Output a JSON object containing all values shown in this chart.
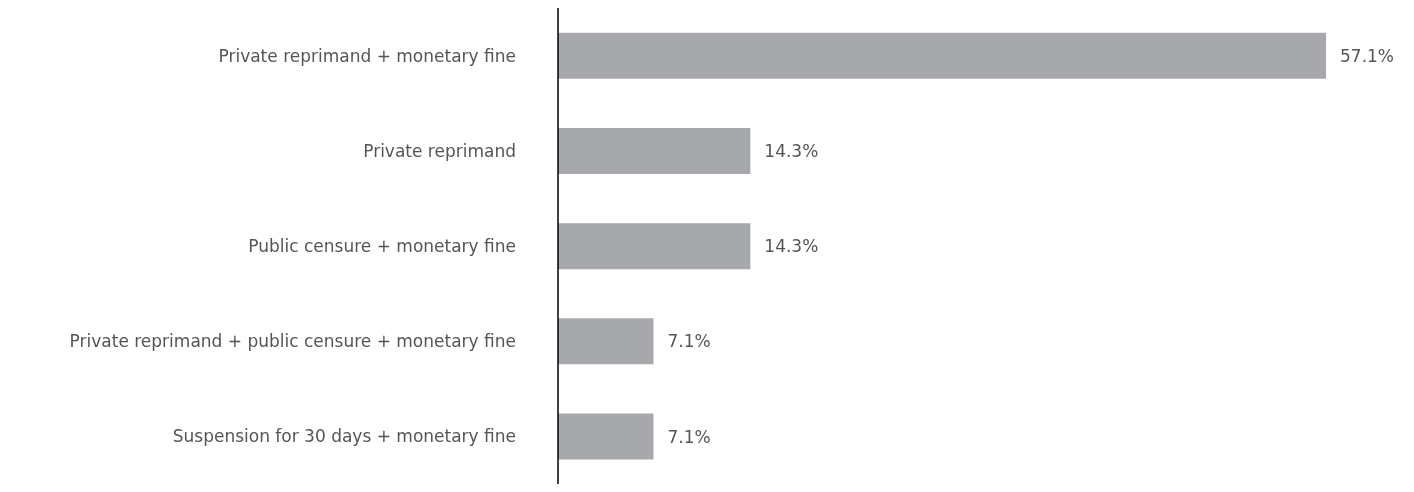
{
  "chart_data": {
    "type": "bar",
    "orientation": "horizontal",
    "categories": [
      "Private reprimand + monetary fine",
      "Private reprimand",
      "Public censure + monetary fine",
      "Private reprimand + public censure + monetary fine",
      "Suspension for 30 days + monetary fine"
    ],
    "values": [
      57.1,
      14.3,
      14.3,
      7.1,
      7.1
    ],
    "value_labels": [
      "57.1%",
      "14.3%",
      "14.3%",
      "7.1%",
      "7.1%"
    ],
    "color": "#a7a8ab",
    "grid": false,
    "legend": false
  }
}
